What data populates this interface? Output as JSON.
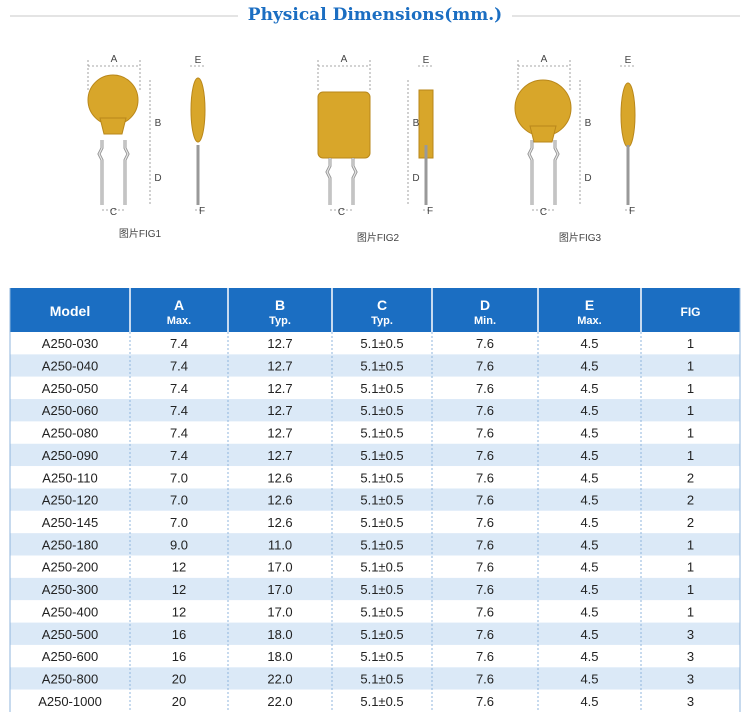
{
  "title": "Physical Dimensions(mm.)",
  "figures": [
    {
      "caption": "图片FIG1",
      "labels": [
        "A",
        "B",
        "D",
        "C",
        "E",
        "F"
      ]
    },
    {
      "caption": "图片FIG2",
      "labels": [
        "A",
        "B",
        "D",
        "C",
        "E",
        "F"
      ]
    },
    {
      "caption": "图片FIG3",
      "labels": [
        "A",
        "B",
        "D",
        "C",
        "E",
        "F"
      ]
    }
  ],
  "table": {
    "header": [
      {
        "label": "Model"
      },
      {
        "label": "A",
        "sub": "Max."
      },
      {
        "label": "B",
        "sub": "Typ."
      },
      {
        "label": "C",
        "sub": "Typ."
      },
      {
        "label": "D",
        "sub": "Min."
      },
      {
        "label": "E",
        "sub": "Max."
      },
      {
        "label": "FIG"
      }
    ],
    "rows": [
      [
        "A250-030",
        "7.4",
        "12.7",
        "5.1±0.5",
        "7.6",
        "4.5",
        "1"
      ],
      [
        "A250-040",
        "7.4",
        "12.7",
        "5.1±0.5",
        "7.6",
        "4.5",
        "1"
      ],
      [
        "A250-050",
        "7.4",
        "12.7",
        "5.1±0.5",
        "7.6",
        "4.5",
        "1"
      ],
      [
        "A250-060",
        "7.4",
        "12.7",
        "5.1±0.5",
        "7.6",
        "4.5",
        "1"
      ],
      [
        "A250-080",
        "7.4",
        "12.7",
        "5.1±0.5",
        "7.6",
        "4.5",
        "1"
      ],
      [
        "A250-090",
        "7.4",
        "12.7",
        "5.1±0.5",
        "7.6",
        "4.5",
        "1"
      ],
      [
        "A250-110",
        "7.0",
        "12.6",
        "5.1±0.5",
        "7.6",
        "4.5",
        "2"
      ],
      [
        "A250-120",
        "7.0",
        "12.6",
        "5.1±0.5",
        "7.6",
        "4.5",
        "2"
      ],
      [
        "A250-145",
        "7.0",
        "12.6",
        "5.1±0.5",
        "7.6",
        "4.5",
        "2"
      ],
      [
        "A250-180",
        "9.0",
        "11.0",
        "5.1±0.5",
        "7.6",
        "4.5",
        "1"
      ],
      [
        "A250-200",
        "12",
        "17.0",
        "5.1±0.5",
        "7.6",
        "4.5",
        "1"
      ],
      [
        "A250-300",
        "12",
        "17.0",
        "5.1±0.5",
        "7.6",
        "4.5",
        "1"
      ],
      [
        "A250-400",
        "12",
        "17.0",
        "5.1±0.5",
        "7.6",
        "4.5",
        "1"
      ],
      [
        "A250-500",
        "16",
        "18.0",
        "5.1±0.5",
        "7.6",
        "4.5",
        "3"
      ],
      [
        "A250-600",
        "16",
        "18.0",
        "5.1±0.5",
        "7.6",
        "4.5",
        "3"
      ],
      [
        "A250-800",
        "20",
        "22.0",
        "5.1±0.5",
        "7.6",
        "4.5",
        "3"
      ],
      [
        "A250-1000",
        "20",
        "22.0",
        "5.1±0.5",
        "7.6",
        "4.5",
        "3"
      ]
    ]
  }
}
